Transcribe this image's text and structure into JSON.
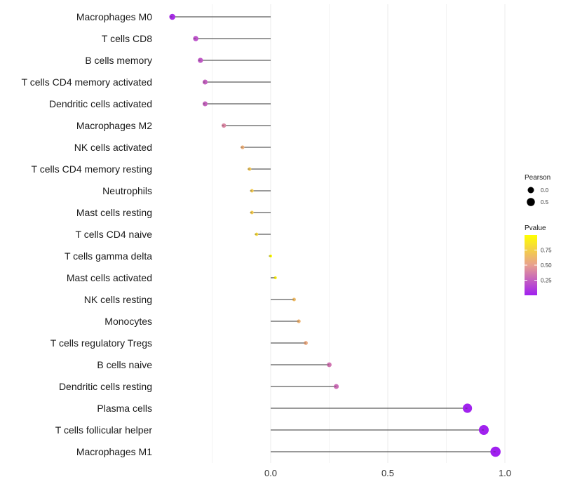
{
  "chart_data": {
    "type": "lollipop",
    "title": "",
    "xlabel": "",
    "ylabel": "",
    "xlim": [
      -0.55,
      1.0
    ],
    "x_ticks": [
      {
        "value": 0.0,
        "label": "0.0"
      },
      {
        "value": 0.5,
        "label": "0.5"
      },
      {
        "value": 1.0,
        "label": "1.0"
      }
    ],
    "x_minor_gridlines": [
      -0.25,
      0.25,
      0.75
    ],
    "series": [
      {
        "category": "Macrophages M0",
        "value": -0.42,
        "pvalue": 0.05
      },
      {
        "category": "T cells CD8",
        "value": -0.32,
        "pvalue": 0.2
      },
      {
        "category": "B cells memory",
        "value": -0.3,
        "pvalue": 0.22
      },
      {
        "category": "T cells CD4 memory activated",
        "value": -0.28,
        "pvalue": 0.25
      },
      {
        "category": "Dendritic cells activated",
        "value": -0.28,
        "pvalue": 0.26
      },
      {
        "category": "Macrophages M2",
        "value": -0.2,
        "pvalue": 0.4
      },
      {
        "category": "NK cells activated",
        "value": -0.12,
        "pvalue": 0.58
      },
      {
        "category": "T cells CD4 memory resting",
        "value": -0.09,
        "pvalue": 0.7
      },
      {
        "category": "Neutrophils",
        "value": -0.08,
        "pvalue": 0.72
      },
      {
        "category": "Mast cells resting",
        "value": -0.08,
        "pvalue": 0.72
      },
      {
        "category": "T cells CD4 naive",
        "value": -0.06,
        "pvalue": 0.8
      },
      {
        "category": "T cells gamma delta",
        "value": 0.0,
        "pvalue": 0.99
      },
      {
        "category": "Mast cells activated",
        "value": 0.02,
        "pvalue": 0.93
      },
      {
        "category": "NK cells resting",
        "value": 0.1,
        "pvalue": 0.64
      },
      {
        "category": "Monocytes",
        "value": 0.12,
        "pvalue": 0.6
      },
      {
        "category": "T cells regulatory  Tregs ",
        "value": 0.15,
        "pvalue": 0.55
      },
      {
        "category": "B cells naive",
        "value": 0.25,
        "pvalue": 0.33
      },
      {
        "category": "Dendritic cells resting",
        "value": 0.28,
        "pvalue": 0.3
      },
      {
        "category": "Plasma cells",
        "value": 0.84,
        "pvalue": 0.01
      },
      {
        "category": "T cells follicular helper",
        "value": 0.91,
        "pvalue": 0.005
      },
      {
        "category": "Macrophages M1",
        "value": 0.96,
        "pvalue": 0.001
      }
    ],
    "size_legend": {
      "title": "Pearson",
      "entries": [
        {
          "label": "0.0",
          "value": 0.0
        },
        {
          "label": "0.5",
          "value": 0.5
        }
      ]
    },
    "color_legend": {
      "title": "Pvalue",
      "ticks": [
        {
          "label": "0.75",
          "value": 0.75
        },
        {
          "label": "0.50",
          "value": 0.5
        },
        {
          "label": "0.25",
          "value": 0.25
        }
      ],
      "range": [
        0.0,
        1.0
      ],
      "color_low": "#a020f0",
      "color_mid": "#e8a090",
      "color_high": "#ffff00"
    },
    "stem_color": "#333333",
    "grid_color": "#ebebeb"
  }
}
